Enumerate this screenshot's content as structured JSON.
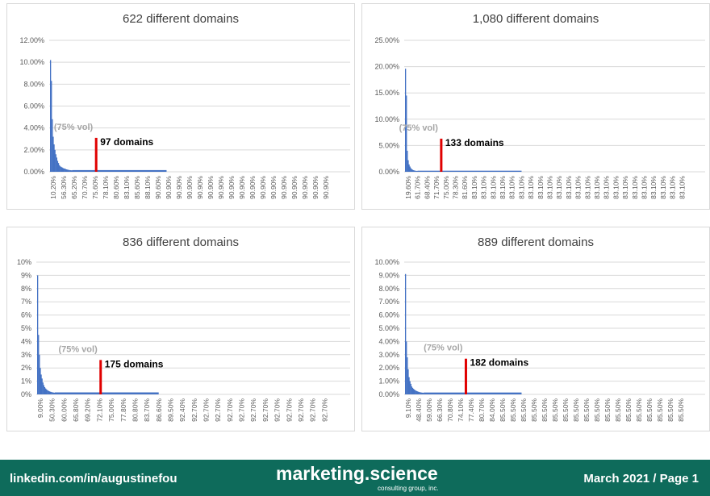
{
  "charts_ui": [
    {
      "title": "622 different domains"
    },
    {
      "title": "1,080 different domains"
    },
    {
      "title": "836 different domains"
    },
    {
      "title": "889 different domains"
    }
  ],
  "chart_data": [
    {
      "type": "area",
      "title": "622 different domains",
      "y_ticks": [
        "0.00%",
        "2.00%",
        "4.00%",
        "6.00%",
        "8.00%",
        "10.00%",
        "12.00%"
      ],
      "ylim": [
        0,
        12
      ],
      "x_labels": [
        "10.20%",
        "56.30%",
        "65.20%",
        "70.70%",
        "75.60%",
        "78.10%",
        "80.60%",
        "83.10%",
        "85.60%",
        "88.10%",
        "90.60%",
        "90.90%",
        "90.90%",
        "90.90%",
        "90.90%",
        "90.90%",
        "90.90%",
        "90.90%",
        "90.90%",
        "90.90%",
        "90.90%",
        "90.90%",
        "90.90%",
        "90.90%",
        "90.90%",
        "90.90%",
        "90.90%"
      ],
      "series_values": [
        10.2,
        8.3,
        4.8,
        3.2,
        2.5,
        2.0,
        1.6,
        1.3,
        1.0,
        0.8,
        0.6,
        0.5,
        0.45,
        0.4,
        0.35,
        0.3,
        0.3,
        0.25,
        0.22,
        0.2,
        0.18,
        0.16,
        0.15,
        0.14,
        0.13
      ],
      "tail_value": 0.08,
      "marker": {
        "x_fraction": 0.156,
        "value": 3.1,
        "vol_label": "(75% vol)",
        "count_label": "97 domains"
      }
    },
    {
      "type": "area",
      "title": "1,080 different domains",
      "y_ticks": [
        "0.00%",
        "5.00%",
        "10.00%",
        "15.00%",
        "20.00%",
        "25.00%"
      ],
      "ylim": [
        0,
        25
      ],
      "x_labels": [
        "19.60%",
        "61.70%",
        "68.40%",
        "71.70%",
        "75.00%",
        "78.30%",
        "81.60%",
        "83.10%",
        "83.10%",
        "83.10%",
        "83.10%",
        "83.10%",
        "83.10%",
        "83.10%",
        "83.10%",
        "83.10%",
        "83.10%",
        "83.10%",
        "83.10%",
        "83.10%",
        "83.10%",
        "83.10%",
        "83.10%",
        "83.10%",
        "83.10%",
        "83.10%",
        "83.10%",
        "83.10%",
        "83.10%",
        "83.10%"
      ],
      "series_values": [
        19.6,
        14.5,
        4.0,
        2.2,
        1.4,
        1.0,
        0.7,
        0.5,
        0.4,
        0.3,
        0.25,
        0.2,
        0.18,
        0.15
      ],
      "tail_value": 0.05,
      "marker": {
        "x_fraction": 0.123,
        "value": 6.3,
        "vol_label": "(75% vol)",
        "count_label": "133 domains"
      }
    },
    {
      "type": "area",
      "title": "836 different domains",
      "y_ticks": [
        "0%",
        "1%",
        "2%",
        "3%",
        "4%",
        "5%",
        "6%",
        "7%",
        "8%",
        "9%",
        "10%"
      ],
      "ylim": [
        0,
        10
      ],
      "x_labels": [
        "9.00%",
        "50.30%",
        "60.00%",
        "65.80%",
        "69.20%",
        "72.10%",
        "75.00%",
        "77.80%",
        "80.80%",
        "83.70%",
        "86.60%",
        "89.50%",
        "92.40%",
        "92.70%",
        "92.70%",
        "92.70%",
        "92.70%",
        "92.70%",
        "92.70%",
        "92.70%",
        "92.70%",
        "92.70%",
        "92.70%",
        "92.70%",
        "92.70%"
      ],
      "series_values": [
        9.0,
        4.5,
        3.0,
        2.0,
        1.5,
        1.2,
        0.9,
        0.7,
        0.55,
        0.45,
        0.38,
        0.32,
        0.28,
        0.24,
        0.21,
        0.19,
        0.17,
        0.15,
        0.14,
        0.13
      ],
      "tail_value": 0.09,
      "marker": {
        "x_fraction": 0.205,
        "value": 2.6,
        "vol_label": "(75% vol)",
        "count_label": "175 domains"
      }
    },
    {
      "type": "area",
      "title": "889 different domains",
      "y_ticks": [
        "0.00%",
        "1.00%",
        "2.00%",
        "3.00%",
        "4.00%",
        "5.00%",
        "6.00%",
        "7.00%",
        "8.00%",
        "9.00%",
        "10.00%"
      ],
      "ylim": [
        0,
        10
      ],
      "x_labels": [
        "9.10%",
        "48.40%",
        "59.00%",
        "66.30%",
        "70.80%",
        "74.10%",
        "77.40%",
        "80.70%",
        "84.00%",
        "85.50%",
        "85.50%",
        "85.50%",
        "85.50%",
        "85.50%",
        "85.50%",
        "85.50%",
        "85.50%",
        "85.50%",
        "85.50%",
        "85.50%",
        "85.50%",
        "85.50%",
        "85.50%",
        "85.50%",
        "85.50%",
        "85.50%",
        "85.50%"
      ],
      "series_values": [
        9.1,
        4.0,
        2.8,
        1.9,
        1.3,
        1.0,
        0.8,
        0.6,
        0.5,
        0.42,
        0.36,
        0.31,
        0.27,
        0.24,
        0.21,
        0.19,
        0.17,
        0.15,
        0.14,
        0.13,
        0.12
      ],
      "tail_value": 0.08,
      "marker": {
        "x_fraction": 0.205,
        "value": 2.7,
        "vol_label": "(75% vol)",
        "count_label": "182 domains"
      }
    }
  ],
  "footer": {
    "left": "linkedin.com/in/augustinefou",
    "brand": "marketing.science",
    "brand_sub": "consulting group, inc.",
    "right": "March 2021 / Page 1"
  },
  "colors": {
    "series": "#4472c4",
    "marker": "#e00000",
    "grid": "#d9d9d9",
    "vol_label": "#a6a6a6",
    "footer_bg": "#0e6b5b"
  }
}
